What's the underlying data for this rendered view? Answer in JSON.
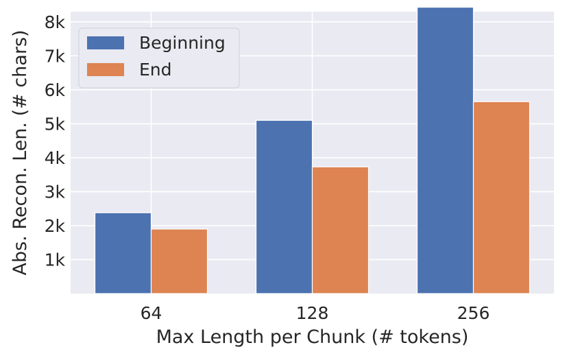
{
  "chart_data": {
    "type": "bar",
    "title": "",
    "xlabel": "Max Length per Chunk (# tokens)",
    "ylabel": "Abs. Recon. Len. (# chars)",
    "categories": [
      "64",
      "128",
      "256"
    ],
    "series": [
      {
        "name": "Beginning",
        "values": [
          2380,
          5100,
          8430
        ],
        "color": "#4c72b0"
      },
      {
        "name": "End",
        "values": [
          1900,
          3730,
          5650
        ],
        "color": "#dd8452"
      }
    ],
    "ylim": [
      0,
      8300
    ],
    "yticks": [
      1000,
      2000,
      3000,
      4000,
      5000,
      6000,
      7000,
      8000
    ],
    "ytick_labels": [
      "1k",
      "2k",
      "3k",
      "4k",
      "5k",
      "6k",
      "7k",
      "8k"
    ],
    "grid": true,
    "legend_position": "top-left",
    "background_color": "#eaeaf2"
  }
}
